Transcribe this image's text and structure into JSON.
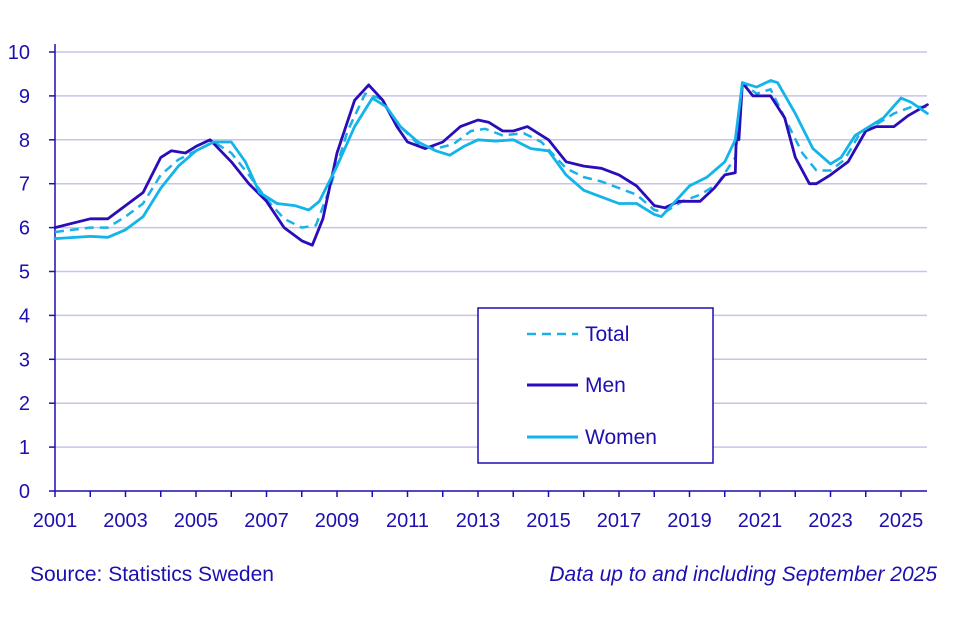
{
  "chart_data": {
    "type": "line",
    "title": "",
    "xlabel": "",
    "ylabel": "",
    "xlim": [
      2001,
      2025.75
    ],
    "ylim": [
      0,
      10
    ],
    "x_ticks": [
      "2001",
      "2003",
      "2005",
      "2007",
      "2009",
      "2011",
      "2013",
      "2015",
      "2017",
      "2019",
      "2021",
      "2023",
      "2025"
    ],
    "y_ticks": [
      "0",
      "1",
      "2",
      "3",
      "4",
      "5",
      "6",
      "7",
      "8",
      "9",
      "10"
    ],
    "grid": "horizontal",
    "legend_position": "center-right",
    "series": [
      {
        "name": "Total",
        "color": "#1ab0e8",
        "style": "dashed",
        "x": [
          2001,
          2002,
          2002.5,
          2003,
          2003.5,
          2004,
          2004.5,
          2005,
          2005.5,
          2006,
          2006.5,
          2007,
          2007.5,
          2008,
          2008.4,
          2008.8,
          2009.3,
          2009.8,
          2010.2,
          2010.8,
          2011.3,
          2011.8,
          2012.3,
          2012.8,
          2013.2,
          2013.7,
          2014.3,
          2014.8,
          2015.5,
          2016,
          2016.5,
          2017,
          2017.5,
          2018,
          2018.3,
          2018.8,
          2019.3,
          2019.8,
          2020.3,
          2020.5,
          2020.9,
          2021.3,
          2021.7,
          2022.2,
          2022.6,
          2023,
          2023.4,
          2023.8,
          2024.3,
          2024.8,
          2025.3,
          2025.75
        ],
        "y": [
          5.9,
          6.0,
          6.0,
          6.25,
          6.55,
          7.2,
          7.55,
          7.75,
          7.95,
          7.7,
          7.2,
          6.65,
          6.2,
          6.0,
          6.05,
          6.9,
          8.2,
          9.05,
          8.95,
          8.3,
          7.9,
          7.8,
          7.9,
          8.2,
          8.25,
          8.1,
          8.15,
          7.95,
          7.35,
          7.15,
          7.05,
          6.9,
          6.75,
          6.4,
          6.35,
          6.6,
          6.75,
          7.0,
          7.6,
          9.3,
          9.05,
          9.15,
          8.5,
          7.7,
          7.3,
          7.3,
          7.55,
          8.1,
          8.35,
          8.6,
          8.75,
          8.75
        ]
      },
      {
        "name": "Men",
        "color": "#2a0cb8",
        "style": "solid",
        "x": [
          2001,
          2001.5,
          2002,
          2002.5,
          2003,
          2003.5,
          2004,
          2004.3,
          2004.7,
          2005,
          2005.4,
          2006,
          2006.5,
          2007,
          2007.5,
          2008,
          2008.3,
          2008.6,
          2009,
          2009.5,
          2009.9,
          2010.3,
          2010.7,
          2011,
          2011.5,
          2012,
          2012.5,
          2013,
          2013.3,
          2013.7,
          2014,
          2014.4,
          2015,
          2015.5,
          2016,
          2016.5,
          2017,
          2017.5,
          2018,
          2018.3,
          2018.7,
          2019.3,
          2019.7,
          2020,
          2020.3,
          2020.33,
          2020.4,
          2020.5,
          2020.8,
          2021.3,
          2021.7,
          2022,
          2022.4,
          2022.6,
          2023,
          2023.5,
          2024,
          2024.3,
          2024.8,
          2025.2,
          2025.75
        ],
        "y": [
          6.0,
          6.1,
          6.2,
          6.2,
          6.5,
          6.8,
          7.6,
          7.75,
          7.7,
          7.85,
          8.0,
          7.5,
          7.0,
          6.6,
          6.0,
          5.7,
          5.6,
          6.2,
          7.7,
          8.9,
          9.25,
          8.9,
          8.3,
          7.95,
          7.8,
          7.95,
          8.3,
          8.45,
          8.4,
          8.2,
          8.2,
          8.3,
          8.0,
          7.5,
          7.4,
          7.35,
          7.2,
          6.95,
          6.5,
          6.45,
          6.6,
          6.6,
          6.9,
          7.2,
          7.25,
          8.2,
          8.0,
          9.3,
          9.0,
          9.0,
          8.5,
          7.6,
          7.0,
          7.0,
          7.2,
          7.5,
          8.2,
          8.3,
          8.3,
          8.55,
          8.8
        ]
      },
      {
        "name": "Women",
        "color": "#12b4ea",
        "style": "solid",
        "x": [
          2001,
          2002,
          2002.5,
          2003,
          2003.5,
          2004,
          2004.5,
          2005,
          2005.5,
          2006,
          2006.4,
          2006.8,
          2007.3,
          2007.8,
          2008.2,
          2008.5,
          2009,
          2009.5,
          2010,
          2010.4,
          2010.8,
          2011.3,
          2011.8,
          2012.2,
          2012.6,
          2013,
          2013.5,
          2014,
          2014.5,
          2015,
          2015.5,
          2016,
          2016.5,
          2017,
          2017.5,
          2018,
          2018.2,
          2018.6,
          2019,
          2019.5,
          2020,
          2020.3,
          2020.5,
          2020.9,
          2021.3,
          2021.5,
          2022,
          2022.5,
          2023,
          2023.3,
          2023.7,
          2024,
          2024.5,
          2025,
          2025.3,
          2025.75
        ],
        "y": [
          5.75,
          5.8,
          5.78,
          5.95,
          6.25,
          6.9,
          7.4,
          7.75,
          7.95,
          7.95,
          7.5,
          6.8,
          6.55,
          6.5,
          6.4,
          6.6,
          7.4,
          8.3,
          8.95,
          8.75,
          8.3,
          7.95,
          7.75,
          7.65,
          7.85,
          8.0,
          7.97,
          8.0,
          7.8,
          7.75,
          7.2,
          6.85,
          6.7,
          6.55,
          6.55,
          6.3,
          6.25,
          6.6,
          6.95,
          7.15,
          7.5,
          8.0,
          9.3,
          9.2,
          9.35,
          9.3,
          8.6,
          7.8,
          7.45,
          7.6,
          8.1,
          8.25,
          8.5,
          8.95,
          8.85,
          8.6
        ]
      }
    ]
  },
  "footer": {
    "source": "Source: Statistics Sweden",
    "note": "Data up to and including September 2025"
  },
  "colors": {
    "axis": "#1d0fb0",
    "grid": "#c9c2ea",
    "text": "#1d0fb0"
  }
}
